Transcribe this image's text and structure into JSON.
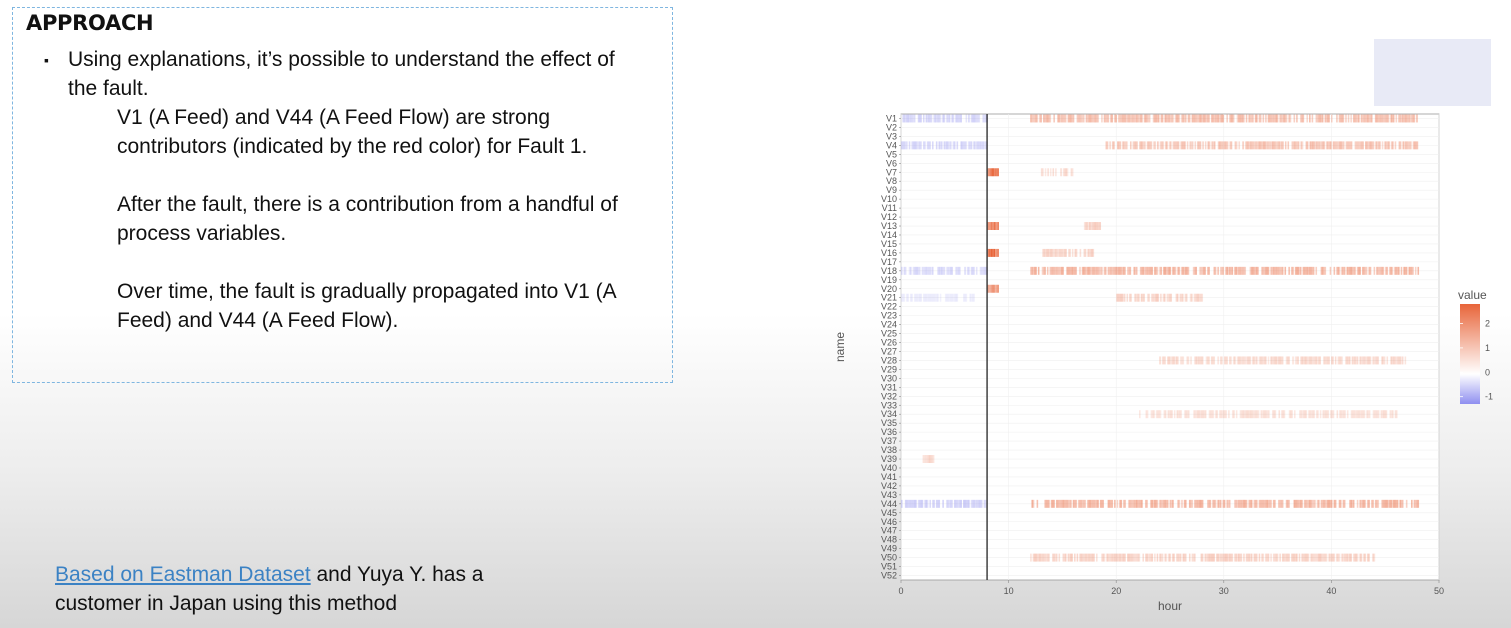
{
  "approach": {
    "title": "APPROACH",
    "bullet_marker": "▪",
    "bullet": "Using explanations, it’s possible to understand the effect of the fault.",
    "para1": "V1 (A Feed) and V44 (A Feed Flow) are strong contributors (indicated by the red color) for Fault 1.",
    "para2": "After the fault, there is a contribution from a handful of process variables.",
    "para3": "Over time, the fault is gradually propagated into V1 (A Feed) and V44 (A Feed Flow)."
  },
  "footer": {
    "link_text": "Based on Eastman Dataset",
    "rest_text": " and Yuya Y. has a customer in Japan using this method"
  },
  "colors": {
    "positive": "#e8653a",
    "negative": "#9c9cf0",
    "link": "#3b82c4",
    "border": "#7fb6e0"
  },
  "chart_data": {
    "type": "heatmap",
    "xlabel": "hour",
    "ylabel": "name",
    "xlim": [
      0,
      50
    ],
    "xticks": [
      0,
      10,
      20,
      30,
      40,
      50
    ],
    "fault_time": 8,
    "legend": {
      "title": "value",
      "placement": "right",
      "ticks": [
        2,
        1,
        0,
        -1
      ],
      "range": [
        -1.3,
        2.8
      ]
    },
    "variables": [
      "V1",
      "V2",
      "V3",
      "V4",
      "V5",
      "V6",
      "V7",
      "V8",
      "V9",
      "V10",
      "V11",
      "V12",
      "V13",
      "V14",
      "V15",
      "V16",
      "V17",
      "V18",
      "V19",
      "V20",
      "V21",
      "V22",
      "V23",
      "V24",
      "V25",
      "V26",
      "V27",
      "V28",
      "V29",
      "V30",
      "V31",
      "V32",
      "V33",
      "V34",
      "V35",
      "V36",
      "V37",
      "V38",
      "V39",
      "V40",
      "V41",
      "V42",
      "V43",
      "V44",
      "V45",
      "V46",
      "V47",
      "V48",
      "V49",
      "V50",
      "V51",
      "V52"
    ],
    "segments": [
      {
        "var": "V1",
        "from": 0,
        "to": 8,
        "value": -0.9
      },
      {
        "var": "V1",
        "from": 12,
        "to": 48,
        "value": 0.9
      },
      {
        "var": "V4",
        "from": 0,
        "to": 8,
        "value": -0.9
      },
      {
        "var": "V4",
        "from": 19,
        "to": 48,
        "value": 0.8
      },
      {
        "var": "V7",
        "from": 8,
        "to": 9,
        "value": 2.3
      },
      {
        "var": "V7",
        "from": 13,
        "to": 16,
        "value": 0.5
      },
      {
        "var": "V13",
        "from": 8,
        "to": 9,
        "value": 2.0
      },
      {
        "var": "V13",
        "from": 17,
        "to": 18.5,
        "value": 0.6
      },
      {
        "var": "V16",
        "from": 8,
        "to": 9,
        "value": 2.5
      },
      {
        "var": "V16",
        "from": 13,
        "to": 18,
        "value": 0.6
      },
      {
        "var": "V18",
        "from": 0,
        "to": 8,
        "value": -0.8
      },
      {
        "var": "V18",
        "from": 12,
        "to": 48,
        "value": 1.0
      },
      {
        "var": "V20",
        "from": 8,
        "to": 9,
        "value": 1.5
      },
      {
        "var": "V21",
        "from": 0,
        "to": 7,
        "value": -0.4
      },
      {
        "var": "V21",
        "from": 20,
        "to": 28,
        "value": 0.6
      },
      {
        "var": "V28",
        "from": 24,
        "to": 47,
        "value": 0.5
      },
      {
        "var": "V34",
        "from": 22,
        "to": 46,
        "value": 0.4
      },
      {
        "var": "V39",
        "from": 2,
        "to": 3,
        "value": 0.5
      },
      {
        "var": "V44",
        "from": 0,
        "to": 8,
        "value": -1.0
      },
      {
        "var": "V44",
        "from": 12,
        "to": 48,
        "value": 1.0
      },
      {
        "var": "V50",
        "from": 12,
        "to": 44,
        "value": 0.6
      }
    ]
  }
}
